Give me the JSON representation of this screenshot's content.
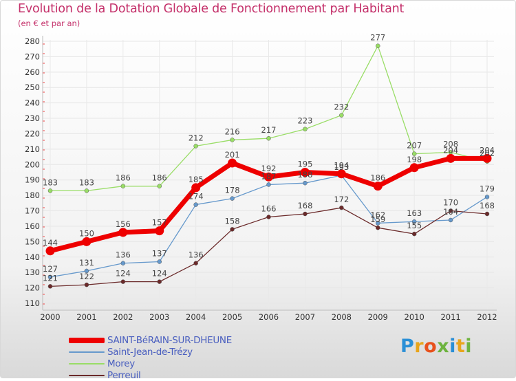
{
  "title": "Evolution de la Dotation Globale de Fonctionnement par Habitant",
  "subtitle": "(en € et par an)",
  "logo_text": "Proxiti",
  "chart_data": {
    "type": "line",
    "title": "Evolution de la Dotation Globale de Fonctionnement par Habitant",
    "subtitle": "(en € et par an)",
    "xlabel": "",
    "ylabel": "",
    "x": [
      "2000",
      "2001",
      "2002",
      "2003",
      "2004",
      "2005",
      "2006",
      "2007",
      "2008",
      "2009",
      "2010",
      "2011",
      "2012"
    ],
    "ylim": [
      110,
      280
    ],
    "yticks": [
      110,
      120,
      130,
      140,
      150,
      160,
      170,
      180,
      190,
      200,
      210,
      220,
      230,
      240,
      250,
      260,
      270,
      280
    ],
    "legend_position": "bottom-left",
    "series": [
      {
        "name": "SAINT-BéRAIN-SUR-DHEUNE",
        "color": "#ee0000",
        "values": [
          144,
          150,
          156,
          157,
          185,
          201,
          192,
          195,
          194,
          186,
          198,
          204,
          204
        ]
      },
      {
        "name": "Saint-Jean-de-Trézy",
        "color": "#6699cc",
        "values": [
          127,
          131,
          136,
          137,
          174,
          178,
          187,
          188,
          193,
          162,
          163,
          164,
          179
        ]
      },
      {
        "name": "Morey",
        "color": "#99dd66",
        "values": [
          183,
          183,
          186,
          186,
          212,
          216,
          217,
          223,
          232,
          277,
          207,
          208,
          202
        ]
      },
      {
        "name": "Perreuil",
        "color": "#6b2a2a",
        "values": [
          121,
          122,
          124,
          124,
          136,
          158,
          166,
          168,
          172,
          159,
          155,
          170,
          168
        ]
      }
    ]
  }
}
